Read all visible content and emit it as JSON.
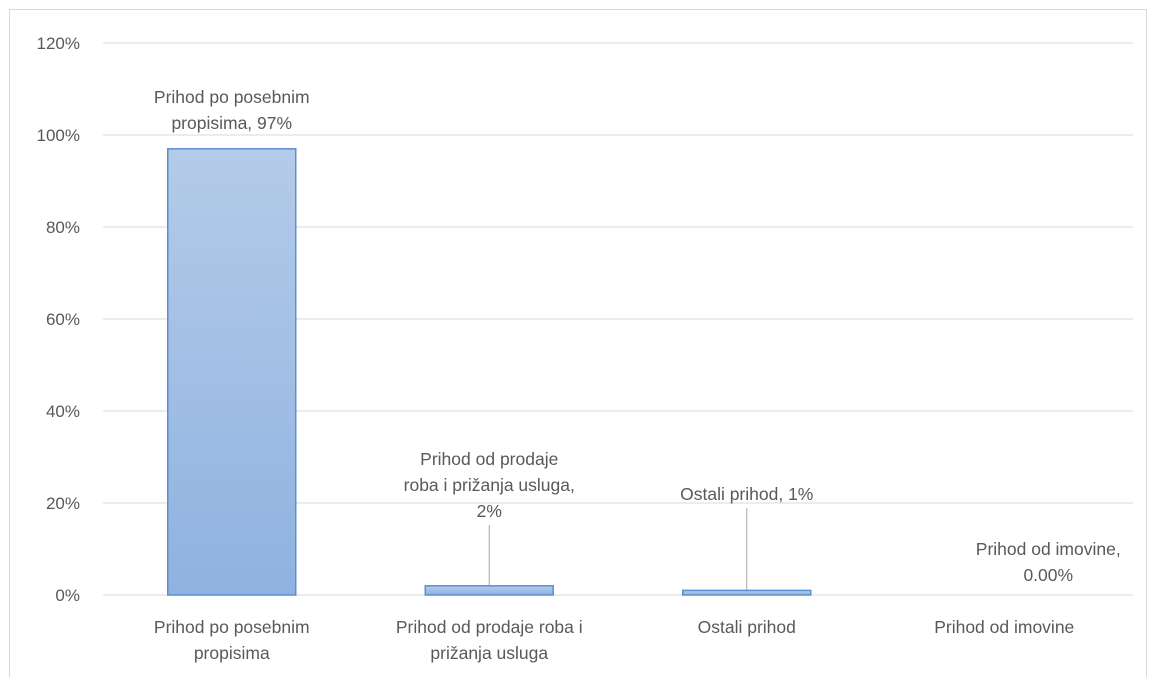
{
  "chart_data": {
    "type": "bar",
    "categories": [
      [
        "Prihod po posebnim",
        "propisima"
      ],
      [
        "Prihod od prodaje roba i",
        "prižanja usluga"
      ],
      [
        "Ostali prihod"
      ],
      [
        "Prihod od imovine"
      ]
    ],
    "values": [
      97,
      2,
      1,
      0
    ],
    "data_labels": [
      [
        "Prihod po posebnim",
        "propisima, 97%"
      ],
      [
        "Prihod od prodaje",
        "roba i prižanja usluga,",
        "2%"
      ],
      [
        "Ostali prihod, 1%"
      ],
      [
        "Prihod od imovine,",
        "0.00%"
      ]
    ],
    "y_ticks": [
      "0%",
      "20%",
      "40%",
      "60%",
      "80%",
      "100%",
      "120%"
    ],
    "ylim": [
      0,
      120
    ],
    "grid": true,
    "legend": "none",
    "colors": {
      "bar_fill_top": "#b4cbe9",
      "bar_fill_bottom": "#8fb2e0",
      "bar_stroke": "#5b8fd0",
      "grid": "#d9d9d9",
      "text": "#595959",
      "leader": "#a6a6a6"
    }
  }
}
